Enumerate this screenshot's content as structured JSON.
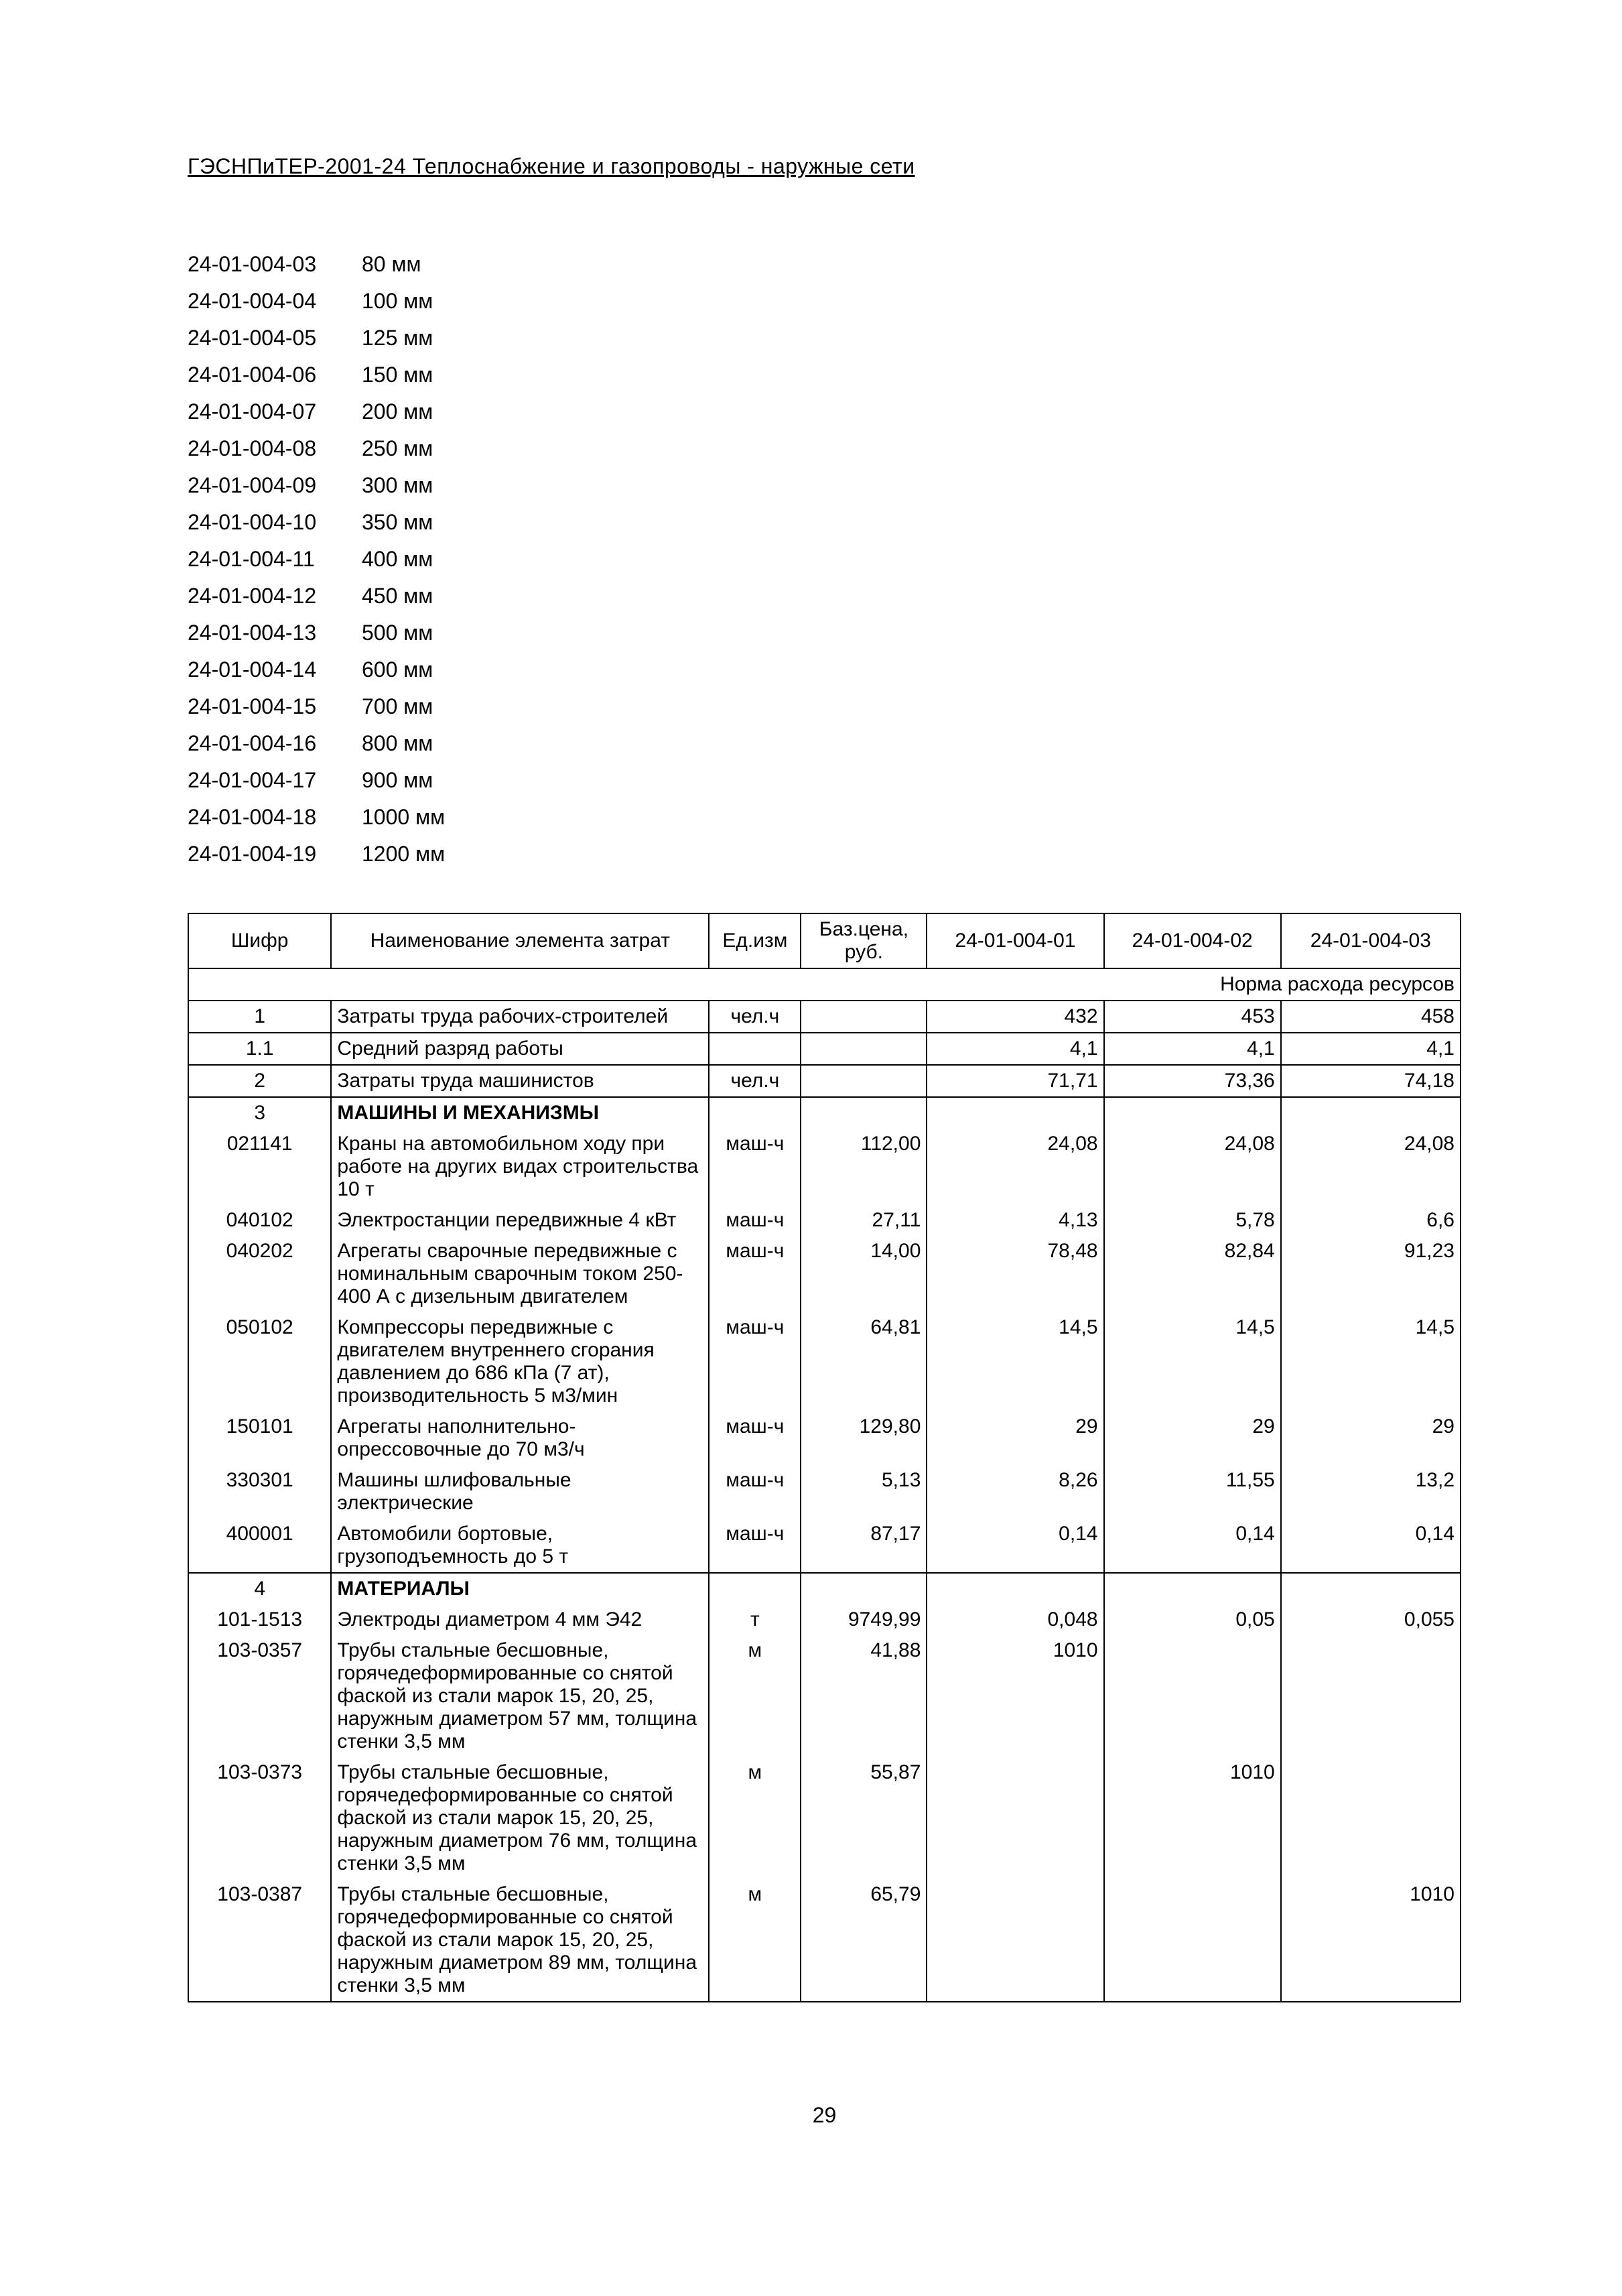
{
  "header_title": "ГЭСНПиТЕР-2001-24 Теплоснабжение и газопроводы - наружные сети",
  "page_number": "29",
  "code_list": [
    {
      "code": "24-01-004-03",
      "label": "80 мм"
    },
    {
      "code": "24-01-004-04",
      "label": "100 мм"
    },
    {
      "code": "24-01-004-05",
      "label": "125 мм"
    },
    {
      "code": "24-01-004-06",
      "label": "150 мм"
    },
    {
      "code": "24-01-004-07",
      "label": "200 мм"
    },
    {
      "code": "24-01-004-08",
      "label": "250 мм"
    },
    {
      "code": "24-01-004-09",
      "label": "300 мм"
    },
    {
      "code": "24-01-004-10",
      "label": "350 мм"
    },
    {
      "code": "24-01-004-11",
      "label": "400 мм"
    },
    {
      "code": "24-01-004-12",
      "label": "450 мм"
    },
    {
      "code": "24-01-004-13",
      "label": "500 мм"
    },
    {
      "code": "24-01-004-14",
      "label": "600 мм"
    },
    {
      "code": "24-01-004-15",
      "label": "700 мм"
    },
    {
      "code": "24-01-004-16",
      "label": "800 мм"
    },
    {
      "code": "24-01-004-17",
      "label": "900 мм"
    },
    {
      "code": "24-01-004-18",
      "label": "1000 мм"
    },
    {
      "code": "24-01-004-19",
      "label": "1200 мм"
    }
  ],
  "table": {
    "headers": {
      "shifr": "Шифр",
      "name": "Наименование элемента затрат",
      "ed": "Ед.изм",
      "price": "Баз.цена, руб.",
      "d1": "24-01-004-01",
      "d2": "24-01-004-02",
      "d3": "24-01-004-03",
      "norm": "Норма расхода ресурсов"
    },
    "rows": [
      {
        "group": "sep",
        "shifr": "1",
        "name": "Затраты труда рабочих-строителей",
        "ed": "чел.ч",
        "price": "",
        "v1": "432",
        "v2": "453",
        "v3": "458"
      },
      {
        "group": "mid",
        "shifr": "1.1",
        "name": "Средний разряд работы",
        "ed": "",
        "price": "",
        "v1": "4,1",
        "v2": "4,1",
        "v3": "4,1"
      },
      {
        "group": "sep",
        "shifr": "2",
        "name": "Затраты труда машинистов",
        "ed": "чел.ч",
        "price": "",
        "v1": "71,71",
        "v2": "73,36",
        "v3": "74,18"
      },
      {
        "group": "top",
        "shifr": "3",
        "name": "МАШИНЫ И МЕХАНИЗМЫ",
        "bold": true,
        "ed": "",
        "price": "",
        "v1": "",
        "v2": "",
        "v3": ""
      },
      {
        "group": "mid",
        "shifr": "021141",
        "name": "Краны на автомобильном ходу при работе на других видах строительства 10 т",
        "ed": "маш-ч",
        "price": "112,00",
        "v1": "24,08",
        "v2": "24,08",
        "v3": "24,08"
      },
      {
        "group": "mid",
        "shifr": "040102",
        "name": "Электростанции передвижные 4 кВт",
        "ed": "маш-ч",
        "price": "27,11",
        "v1": "4,13",
        "v2": "5,78",
        "v3": "6,6"
      },
      {
        "group": "mid",
        "shifr": "040202",
        "name": "Агрегаты сварочные передвижные с номинальным сварочным током 250-400 А с дизельным двигателем",
        "ed": "маш-ч",
        "price": "14,00",
        "v1": "78,48",
        "v2": "82,84",
        "v3": "91,23"
      },
      {
        "group": "mid",
        "shifr": "050102",
        "name": "Компрессоры передвижные с двигателем внутреннего сгорания давлением до 686 кПа (7 ат), производительность 5 м3/мин",
        "ed": "маш-ч",
        "price": "64,81",
        "v1": "14,5",
        "v2": "14,5",
        "v3": "14,5"
      },
      {
        "group": "mid",
        "shifr": "150101",
        "name": "Агрегаты наполнительно-опрессовочные до 70 м3/ч",
        "ed": "маш-ч",
        "price": "129,80",
        "v1": "29",
        "v2": "29",
        "v3": "29"
      },
      {
        "group": "mid",
        "shifr": "330301",
        "name": "Машины шлифовальные электрические",
        "ed": "маш-ч",
        "price": "5,13",
        "v1": "8,26",
        "v2": "11,55",
        "v3": "13,2"
      },
      {
        "group": "bot",
        "shifr": "400001",
        "name": "Автомобили бортовые, грузоподъемность до 5 т",
        "ed": "маш-ч",
        "price": "87,17",
        "v1": "0,14",
        "v2": "0,14",
        "v3": "0,14"
      },
      {
        "group": "top",
        "shifr": "4",
        "name": "МАТЕРИАЛЫ",
        "bold": true,
        "ed": "",
        "price": "",
        "v1": "",
        "v2": "",
        "v3": ""
      },
      {
        "group": "mid",
        "shifr": "101-1513",
        "name": "Электроды диаметром 4 мм Э42",
        "ed": "т",
        "price": "9749,99",
        "v1": "0,048",
        "v2": "0,05",
        "v3": "0,055"
      },
      {
        "group": "mid",
        "shifr": "103-0357",
        "name": "Трубы стальные бесшовные, горячедеформированные со снятой фаской из стали марок 15, 20, 25, наружным диаметром 57 мм, толщина стенки 3,5 мм",
        "ed": "м",
        "price": "41,88",
        "v1": "1010",
        "v2": "",
        "v3": ""
      },
      {
        "group": "mid",
        "shifr": "103-0373",
        "name": "Трубы стальные бесшовные, горячедеформированные со снятой фаской из стали марок 15, 20, 25, наружным диаметром 76 мм, толщина стенки 3,5 мм",
        "ed": "м",
        "price": "55,87",
        "v1": "",
        "v2": "1010",
        "v3": ""
      },
      {
        "group": "bot",
        "shifr": "103-0387",
        "name": "Трубы стальные бесшовные, горячедеформированные со снятой фаской из стали марок 15, 20, 25, наружным диаметром 89 мм, толщина стенки 3,5 мм",
        "ed": "м",
        "price": "65,79",
        "v1": "",
        "v2": "",
        "v3": "1010"
      }
    ]
  }
}
